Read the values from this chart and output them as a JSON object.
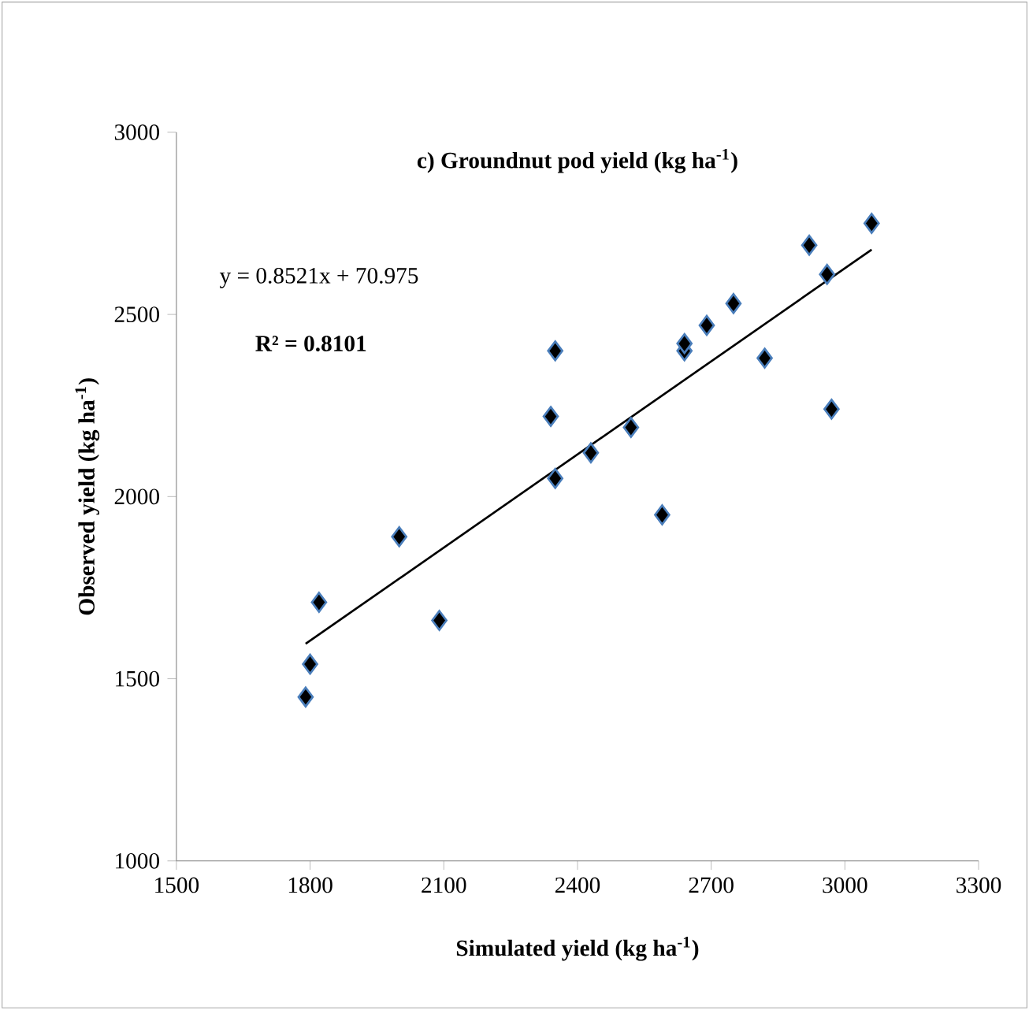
{
  "chart_data": {
    "type": "scatter",
    "title": "c) Groundnut pod yield (kg ha$^{-1}$)",
    "xlabel": "Simulated yield (kg ha$^{-1}$)",
    "ylabel": "Observed yield (kg ha$^{-1}$)",
    "xlim": [
      1500,
      3300
    ],
    "xticks": [
      1500,
      1800,
      2100,
      2400,
      2700,
      3000,
      3300
    ],
    "ylim": [
      1000,
      3000
    ],
    "yticks": [
      1000,
      1500,
      2000,
      2500,
      3000
    ],
    "grid": false,
    "marker": "diamond",
    "annotations": [
      "y = 0.8521x + 70.975",
      "R² = 0.8101"
    ],
    "series": [
      {
        "color": "#000000",
        "x": [
          1790,
          1800,
          1820,
          2000,
          2090,
          2350,
          2340,
          2350,
          2430,
          2520,
          2590,
          2640,
          2640,
          2690,
          2750,
          2820,
          2920,
          2960,
          2970,
          3060
        ],
        "values": [
          1450,
          1540,
          1710,
          1890,
          1660,
          2400,
          2220,
          2050,
          2120,
          2190,
          1950,
          2400,
          2420,
          2470,
          2530,
          2380,
          2690,
          2610,
          2240,
          2750
        ]
      },
      {
        "type": "line",
        "color": "#000000",
        "marker": "none",
        "x": [
          1790,
          3060
        ],
        "values": [
          1596,
          2678
        ]
      }
    ]
  }
}
